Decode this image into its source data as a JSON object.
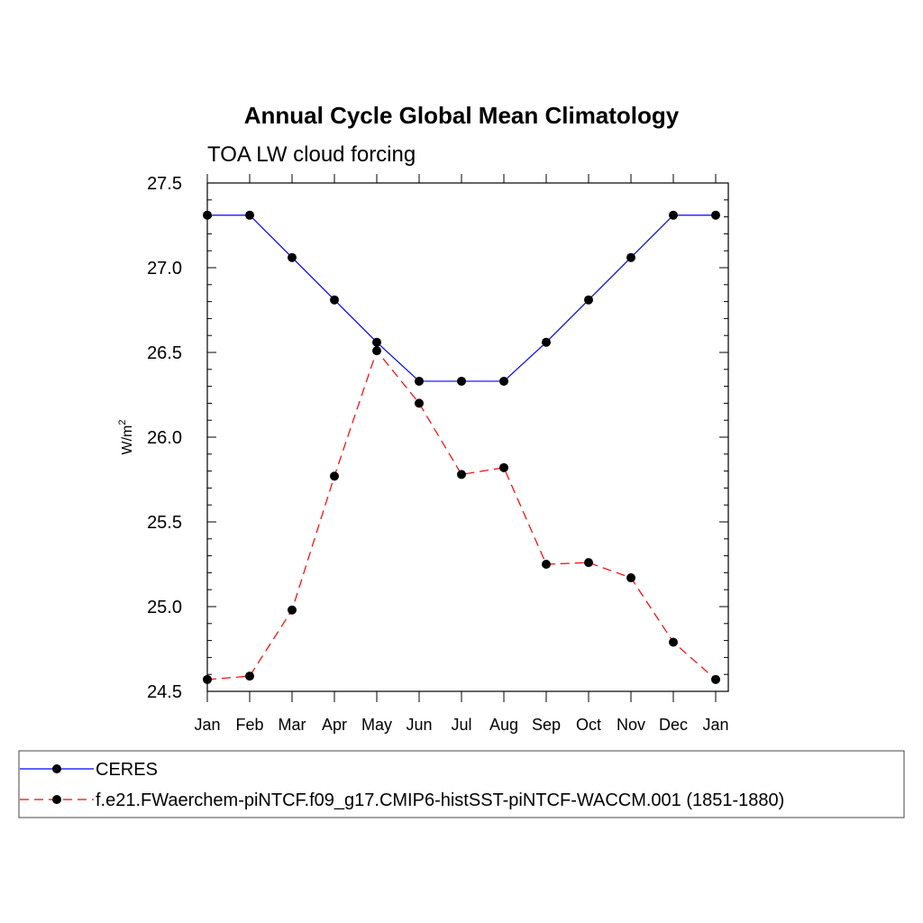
{
  "chart_data": {
    "type": "line",
    "title": "Annual Cycle Global Mean Climatology",
    "subtitle": "TOA LW cloud forcing",
    "ylabel": "W/m",
    "ylabel_superscript": "2",
    "ylim": [
      24.5,
      27.5
    ],
    "ytick_values": [
      24.5,
      25.0,
      25.5,
      26.0,
      26.5,
      27.0,
      27.5
    ],
    "ytick_labels": [
      "24.5",
      "25.0",
      "25.5",
      "26.0",
      "26.5",
      "27.0",
      "27.5"
    ],
    "categories": [
      "Jan",
      "Feb",
      "Mar",
      "Apr",
      "May",
      "Jun",
      "Jul",
      "Aug",
      "Sep",
      "Oct",
      "Nov",
      "Dec",
      "Jan"
    ],
    "series": [
      {
        "name": "CERES",
        "color": "#0000ff",
        "dash": "solid",
        "values": [
          27.31,
          27.31,
          27.06,
          26.81,
          26.56,
          26.33,
          26.33,
          26.33,
          26.56,
          26.81,
          27.06,
          27.31,
          27.31
        ]
      },
      {
        "name": "f.e21.FWaerchem-piNTCF.f09_g17.CMIP6-histSST-piNTCF-WACCM.001 (1851-1880)",
        "color": "#ff0000",
        "dash": "dashed",
        "values": [
          24.57,
          24.59,
          24.98,
          25.77,
          26.51,
          26.2,
          25.78,
          25.82,
          25.25,
          25.26,
          25.17,
          24.79,
          24.57
        ]
      }
    ]
  }
}
